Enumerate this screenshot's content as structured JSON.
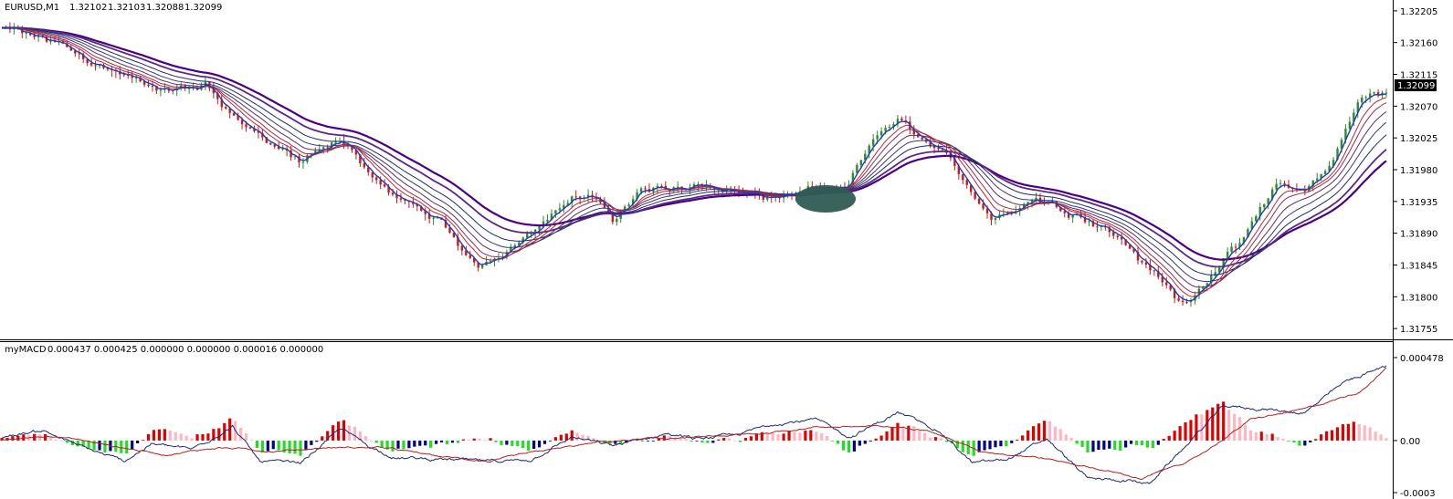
{
  "chart_data": [
    {
      "type": "candlestick",
      "title": "EURUSD,M1",
      "ohlc": {
        "open": "1.32102",
        "high": "1.32103",
        "low": "1.32088",
        "close": "1.32099"
      },
      "y_ticks": [
        "1.32205",
        "1.32160",
        "1.32115",
        "1.32070",
        "1.32025",
        "1.31980",
        "1.31935",
        "1.31890",
        "1.31845",
        "1.31800",
        "1.31755"
      ],
      "ylim": [
        1.3175,
        1.3221
      ],
      "current_price": "1.32099",
      "grid": false,
      "anchors": [
        [
          0,
          1.3218
        ],
        [
          40,
          1.3216
        ],
        [
          80,
          1.3212
        ],
        [
          120,
          1.3209
        ],
        [
          150,
          1.321
        ],
        [
          180,
          1.3204
        ],
        [
          220,
          1.3199
        ],
        [
          250,
          1.3202
        ],
        [
          290,
          1.3194
        ],
        [
          320,
          1.3191
        ],
        [
          350,
          1.3184
        ],
        [
          380,
          1.3188
        ],
        [
          400,
          1.3191
        ],
        [
          420,
          1.3194
        ],
        [
          435,
          1.3194
        ],
        [
          450,
          1.3191
        ],
        [
          470,
          1.3195
        ],
        [
          510,
          1.3196
        ],
        [
          560,
          1.3194
        ],
        [
          600,
          1.3195
        ],
        [
          622,
          1.3195
        ],
        [
          640,
          1.3202
        ],
        [
          660,
          1.3205
        ],
        [
          680,
          1.3202
        ],
        [
          700,
          1.3199
        ],
        [
          730,
          1.3191
        ],
        [
          760,
          1.3194
        ],
        [
          790,
          1.3192
        ],
        [
          820,
          1.3189
        ],
        [
          850,
          1.3183
        ],
        [
          870,
          1.3179
        ],
        [
          890,
          1.3183
        ],
        [
          910,
          1.3187
        ],
        [
          940,
          1.3196
        ],
        [
          960,
          1.3195
        ],
        [
          980,
          1.3199
        ],
        [
          1000,
          1.3208
        ],
        [
          1020,
          1.3209
        ]
      ],
      "moving_averages": [
        {
          "color": "#4b0082",
          "width": 2.2,
          "period": 120
        },
        {
          "color": "#5a2a82",
          "width": 1.8,
          "period": 95
        },
        {
          "color": "#1f2a6e",
          "width": 1.0,
          "period": 70
        },
        {
          "color": "#3a3a7a",
          "width": 1.0,
          "period": 52
        },
        {
          "color": "#5c3060",
          "width": 1.0,
          "period": 38
        },
        {
          "color": "#9b2d4a",
          "width": 1.0,
          "period": 26
        },
        {
          "color": "#c0243c",
          "width": 1.0,
          "period": 18
        },
        {
          "color": "#1e3fb0",
          "width": 1.4,
          "period": 8
        }
      ],
      "colors": {
        "bull": "#2e8b2e",
        "bear": "#cc1a1a",
        "price_box": "#000000"
      }
    },
    {
      "type": "bar",
      "title": "myMACD",
      "header_values": "0.000437 0.000425 0.000000 0.000000 0.000016 0.000000",
      "y_ticks": [
        "0.000478",
        "0.00",
        "-0.0003"
      ],
      "ylim": [
        -0.0003,
        0.000478
      ],
      "macd_anchors": [
        [
          0,
          2e-05
        ],
        [
          30,
          6e-05
        ],
        [
          60,
          -4e-05
        ],
        [
          90,
          -0.00012
        ],
        [
          110,
          -2e-05
        ],
        [
          140,
          -5e-05
        ],
        [
          170,
          8e-05
        ],
        [
          190,
          -0.00012
        ],
        [
          220,
          -0.00013
        ],
        [
          250,
          7e-05
        ],
        [
          270,
          -3e-05
        ],
        [
          290,
          -0.0001
        ],
        [
          330,
          -0.00011
        ],
        [
          360,
          -0.00012
        ],
        [
          390,
          -0.00011
        ],
        [
          420,
          2e-05
        ],
        [
          450,
          -3e-05
        ],
        [
          490,
          4e-05
        ],
        [
          510,
          1e-05
        ],
        [
          540,
          3e-05
        ],
        [
          570,
          0.0001
        ],
        [
          600,
          0.00012
        ],
        [
          625,
          2e-05
        ],
        [
          660,
          0.00016
        ],
        [
          690,
          6e-05
        ],
        [
          715,
          -0.00013
        ],
        [
          740,
          -0.00011
        ],
        [
          770,
          1e-05
        ],
        [
          800,
          -0.00022
        ],
        [
          830,
          -0.00023
        ],
        [
          845,
          -0.00025
        ],
        [
          870,
          -5e-05
        ],
        [
          900,
          0.0002
        ],
        [
          930,
          0.00018
        ],
        [
          960,
          0.00016
        ],
        [
          990,
          0.00034
        ],
        [
          1020,
          0.00043
        ]
      ],
      "signal_anchors": [
        [
          0,
          0.0
        ],
        [
          40,
          3e-05
        ],
        [
          80,
          -3e-05
        ],
        [
          120,
          -8e-05
        ],
        [
          160,
          -4e-05
        ],
        [
          200,
          -6e-05
        ],
        [
          240,
          -4e-05
        ],
        [
          280,
          -4e-05
        ],
        [
          320,
          -9e-05
        ],
        [
          360,
          -0.00012
        ],
        [
          400,
          -6e-05
        ],
        [
          440,
          -1e-05
        ],
        [
          480,
          1e-05
        ],
        [
          520,
          2e-05
        ],
        [
          560,
          4e-05
        ],
        [
          600,
          8e-05
        ],
        [
          640,
          8e-05
        ],
        [
          680,
          7e-05
        ],
        [
          720,
          -6e-05
        ],
        [
          760,
          -9e-05
        ],
        [
          800,
          -0.00015
        ],
        [
          840,
          -0.00022
        ],
        [
          880,
          -0.0001
        ],
        [
          920,
          0.00012
        ],
        [
          960,
          0.00018
        ],
        [
          1000,
          0.00028
        ],
        [
          1020,
          0.00042
        ]
      ],
      "colors": {
        "pos_up": "#e00000",
        "pos_down": "#ffb6c1",
        "neg_down": "#22dd22",
        "neg_up": "#00008b",
        "macd_line": "#1c2a6e",
        "signal_line": "#b22222"
      }
    }
  ]
}
